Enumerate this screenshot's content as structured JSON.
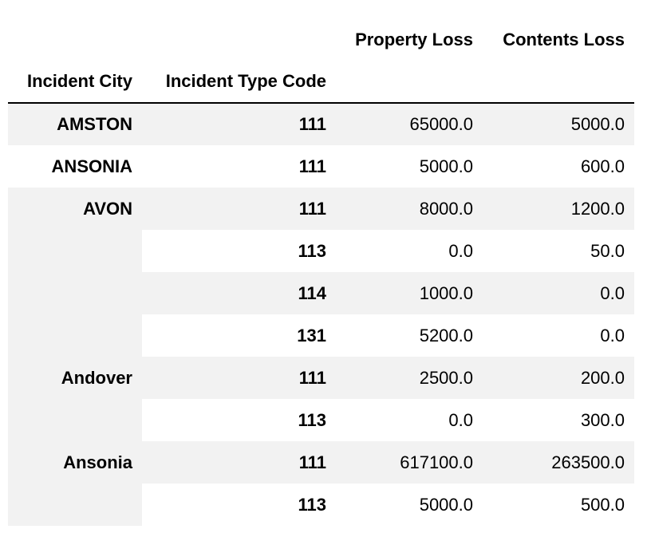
{
  "table": {
    "header_row_1": {
      "blank_1": "",
      "blank_2": "",
      "property_loss": "Property Loss",
      "contents_loss": "Contents Loss"
    },
    "header_row_2": {
      "incident_city": "Incident City",
      "incident_type_code": "Incident Type Code",
      "blank_1": "",
      "blank_2": ""
    },
    "rows": [
      {
        "city": "AMSTON",
        "type_code": "111",
        "property_loss": "65000.0",
        "contents_loss": "5000.0"
      },
      {
        "city": "ANSONIA",
        "type_code": "111",
        "property_loss": "5000.0",
        "contents_loss": "600.0"
      },
      {
        "city": "AVON",
        "type_code": "111",
        "property_loss": "8000.0",
        "contents_loss": "1200.0"
      },
      {
        "city": "",
        "type_code": "113",
        "property_loss": "0.0",
        "contents_loss": "50.0"
      },
      {
        "city": "",
        "type_code": "114",
        "property_loss": "1000.0",
        "contents_loss": "0.0"
      },
      {
        "city": "",
        "type_code": "131",
        "property_loss": "5200.0",
        "contents_loss": "0.0"
      },
      {
        "city": "Andover",
        "type_code": "111",
        "property_loss": "2500.0",
        "contents_loss": "200.0"
      },
      {
        "city": "",
        "type_code": "113",
        "property_loss": "0.0",
        "contents_loss": "300.0"
      },
      {
        "city": "Ansonia",
        "type_code": "111",
        "property_loss": "617100.0",
        "contents_loss": "263500.0"
      },
      {
        "city": "",
        "type_code": "113",
        "property_loss": "5000.0",
        "contents_loss": "500.0"
      }
    ]
  }
}
